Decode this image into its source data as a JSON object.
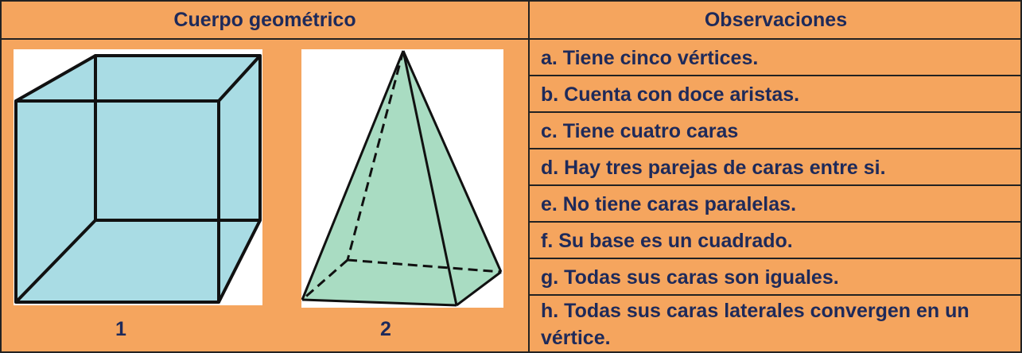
{
  "table": {
    "headers": [
      "Cuerpo geométrico",
      "Observaciones"
    ],
    "figures": [
      "1",
      "2"
    ],
    "observations": [
      "a. Tiene cinco vértices.",
      "b. Cuenta con doce aristas.",
      "c. Tiene cuatro caras",
      "d. Hay tres parejas de caras entre si.",
      "e. No tiene caras paralelas.",
      "f. Su base es un cuadrado.",
      "g. Todas sus caras son iguales.",
      "h. Todas sus caras laterales convergen en un vértice."
    ]
  }
}
